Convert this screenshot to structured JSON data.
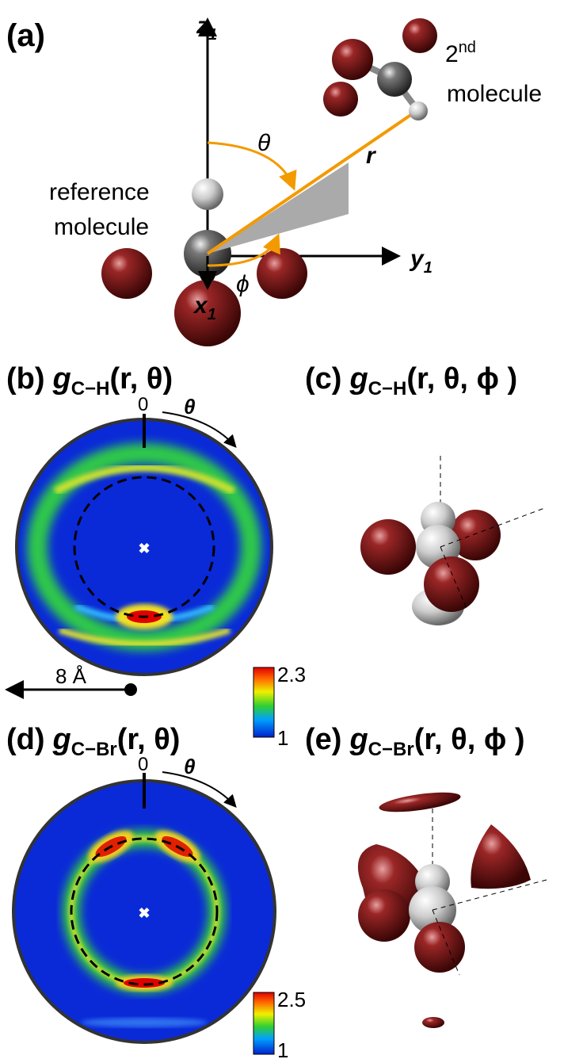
{
  "panel_a": {
    "label": "(a)",
    "z_axis": "z",
    "z_sub": "1",
    "y_axis": "y",
    "y_sub": "1",
    "x_axis": "x",
    "x_sub": "1",
    "theta": "θ",
    "phi": "ϕ",
    "r": "r",
    "second_molecule": {
      "number": "2",
      "superscript": "nd",
      "word": "molecule"
    },
    "reference_molecule": [
      "reference",
      "molecule"
    ]
  },
  "panel_b": {
    "label": "(b)",
    "g": "g",
    "sub": "C−H",
    "args": "(r,  θ)",
    "zero": "0",
    "theta": "θ",
    "colorbar": {
      "max": 2.3,
      "min": 1
    },
    "scale_bar": "8 Å"
  },
  "panel_c": {
    "label": "(c)",
    "g": "g",
    "sub": "C−H",
    "args": "(r,  θ, ϕ )"
  },
  "panel_d": {
    "label": "(d)",
    "g": "g",
    "sub": "C−Br",
    "args": "(r,  θ)",
    "zero": "0",
    "theta": "θ",
    "colorbar": {
      "max": 2.5,
      "min": 1
    }
  },
  "panel_e": {
    "label": "(e)",
    "g": "g",
    "sub": "C−Br",
    "args": "(r,  θ, ϕ )"
  }
}
